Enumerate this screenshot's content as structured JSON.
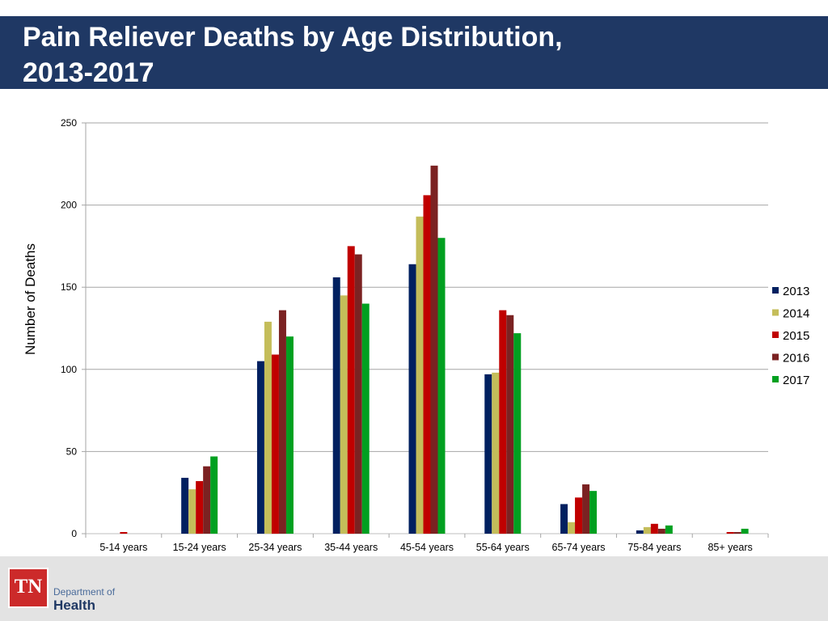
{
  "header": {
    "title_line1": "Pain Reliever Deaths by Age Distribution,",
    "title_line2": "2013-2017",
    "background": "#1f3864"
  },
  "footer": {
    "logo_text": "TN",
    "dept_line1": "Department of",
    "dept_line2": "Health",
    "logo_color": "#cc2a2a"
  },
  "chart_data": {
    "type": "bar",
    "title": "",
    "xlabel": "",
    "ylabel": "Number of Deaths",
    "ylim": [
      0,
      250
    ],
    "yticks": [
      0,
      50,
      100,
      150,
      200,
      250
    ],
    "grid": true,
    "legend_position": "right",
    "categories": [
      "5-14 years",
      "15-24 years",
      "25-34 years",
      "35-44 years",
      "45-54 years",
      "55-64 years",
      "65-74 years",
      "75-84 years",
      "85+ years"
    ],
    "series": [
      {
        "name": "2013",
        "color": "#002060",
        "values": [
          0,
          34,
          105,
          156,
          164,
          97,
          18,
          2,
          0
        ]
      },
      {
        "name": "2014",
        "color": "#c4bd5a",
        "values": [
          0,
          27,
          129,
          145,
          193,
          98,
          7,
          4,
          0
        ]
      },
      {
        "name": "2015",
        "color": "#c00000",
        "values": [
          1,
          32,
          109,
          175,
          206,
          136,
          22,
          6,
          1
        ]
      },
      {
        "name": "2016",
        "color": "#7b2222",
        "values": [
          0,
          41,
          136,
          170,
          224,
          133,
          30,
          3,
          1
        ]
      },
      {
        "name": "2017",
        "color": "#00a020",
        "values": [
          0,
          47,
          120,
          140,
          180,
          122,
          26,
          5,
          3
        ]
      }
    ]
  }
}
